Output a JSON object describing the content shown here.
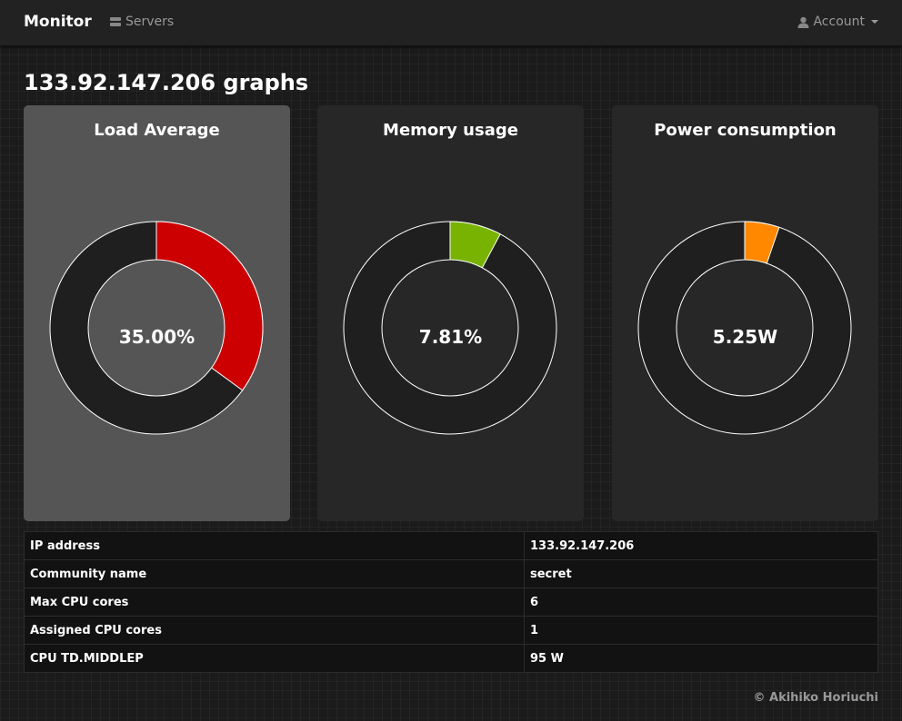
{
  "nav": {
    "brand": "Monitor",
    "servers_label": "Servers",
    "account_label": "Account"
  },
  "page": {
    "title": "133.92.147.206 graphs"
  },
  "gauges": [
    {
      "title": "Load Average",
      "value_text": "35.00%",
      "fraction": 0.35,
      "color": "#cc0000"
    },
    {
      "title": "Memory usage",
      "value_text": "7.81%",
      "fraction": 0.0781,
      "color": "#77b300"
    },
    {
      "title": "Power consumption",
      "value_text": "5.25W",
      "fraction": 0.0525,
      "color": "#ff8800"
    }
  ],
  "info": {
    "rows": [
      {
        "label": "IP address",
        "value": "133.92.147.206"
      },
      {
        "label": "Community name",
        "value": "secret"
      },
      {
        "label": "Max CPU cores",
        "value": "6"
      },
      {
        "label": "Assigned CPU cores",
        "value": "1"
      },
      {
        "label": "CPU TD.MIDDLEP",
        "value": "95 W"
      }
    ]
  },
  "footer": {
    "text": "© Akihiko Horiuchi"
  },
  "colors": {
    "track": "#1f1f1f",
    "stroke": "#ffffff"
  }
}
